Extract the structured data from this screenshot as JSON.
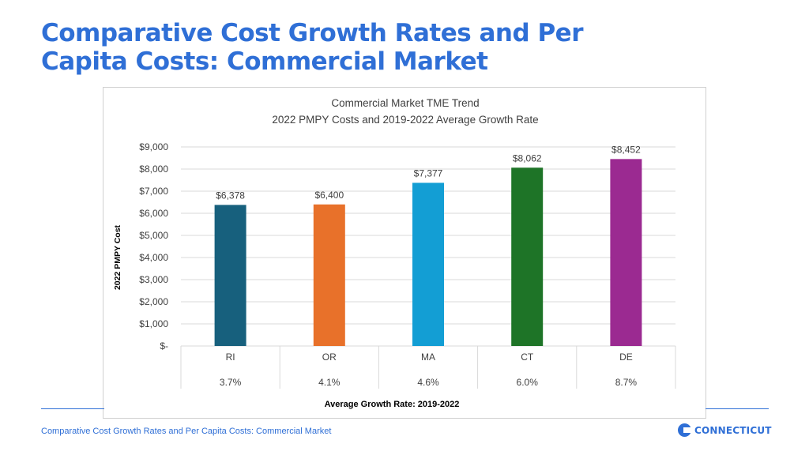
{
  "slide": {
    "title": "Comparative Cost Growth Rates and Per Capita Costs: Commercial Market",
    "footer": "Comparative Cost Growth Rates and Per Capita Costs: Commercial Market",
    "logo_text": "CONNECTICUT"
  },
  "colors": {
    "accent": "#2f6fd6",
    "grid": "#d9d9d9",
    "text": "#404040"
  },
  "chart_data": {
    "type": "bar",
    "title": "Commercial Market TME Trend",
    "subtitle": "2022 PMPY Costs and 2019-2022 Average Growth Rate",
    "ylabel": "2022 PMPY Cost",
    "xlabel": "Average Growth Rate: 2019-2022",
    "ylim": [
      0,
      9000
    ],
    "yticks": [
      0,
      1000,
      2000,
      3000,
      4000,
      5000,
      6000,
      7000,
      8000,
      9000
    ],
    "ytick_labels": [
      "$-",
      "$1,000",
      "$2,000",
      "$3,000",
      "$4,000",
      "$5,000",
      "$6,000",
      "$7,000",
      "$8,000",
      "$9,000"
    ],
    "categories": [
      "RI",
      "OR",
      "MA",
      "CT",
      "DE"
    ],
    "values": [
      6378,
      6400,
      7377,
      8062,
      8452
    ],
    "value_labels": [
      "$6,378",
      "$6,400",
      "$7,377",
      "$8,062",
      "$8,452"
    ],
    "growth_rates": [
      "3.7%",
      "4.1%",
      "4.6%",
      "6.0%",
      "8.7%"
    ],
    "bar_colors": [
      "#17607d",
      "#e8712a",
      "#139ed4",
      "#1e7427",
      "#9b2a91"
    ],
    "grid": true
  }
}
